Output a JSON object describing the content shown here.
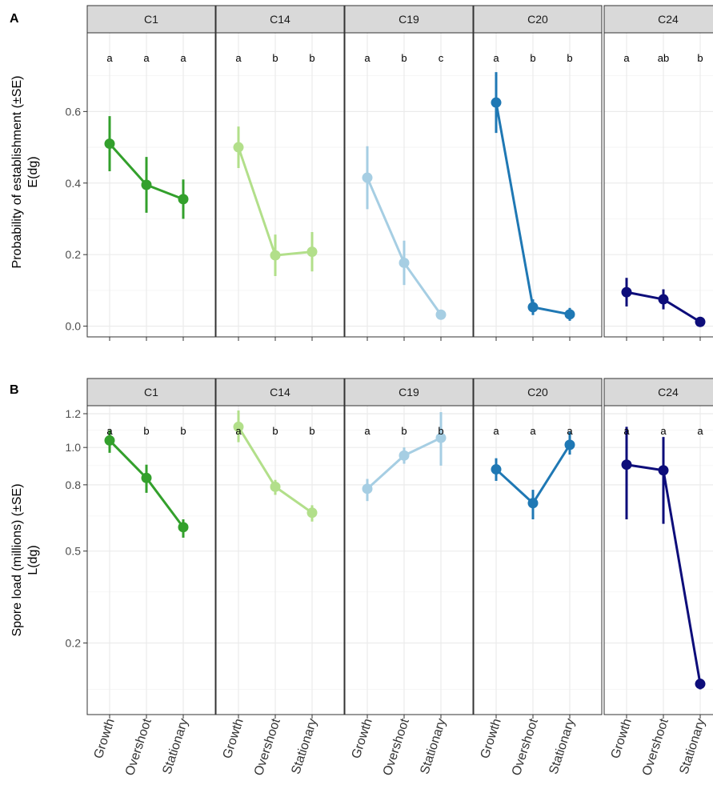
{
  "colors": {
    "C1": "#33a02c",
    "C14": "#b2df8a",
    "C19": "#a6cee3",
    "C20": "#1f78b4",
    "C24": "#0d0d7a"
  },
  "chart_data": [
    {
      "panel": "A",
      "type": "line",
      "ylabel_line1": "Probability of establishment (±SE)",
      "ylabel_line2": "E(dg)",
      "ylim": [
        -0.03,
        0.82
      ],
      "yticks": [
        0.0,
        0.2,
        0.4,
        0.6
      ],
      "ytick_labels": [
        "0.0",
        "0.2",
        "0.4",
        "0.6"
      ],
      "categories": [
        "Growth",
        "Overshoot",
        "Stationary"
      ],
      "grid": true,
      "facets": [
        {
          "name": "C1",
          "values": [
            0.51,
            0.395,
            0.355
          ],
          "se": [
            0.077,
            0.078,
            0.055
          ],
          "letters": [
            "a",
            "a",
            "a"
          ]
        },
        {
          "name": "C14",
          "values": [
            0.5,
            0.198,
            0.208
          ],
          "se": [
            0.058,
            0.058,
            0.055
          ],
          "letters": [
            "a",
            "b",
            "b"
          ]
        },
        {
          "name": "C19",
          "values": [
            0.415,
            0.177,
            0.032
          ],
          "se": [
            0.088,
            0.062,
            0.012
          ],
          "letters": [
            "a",
            "b",
            "c"
          ]
        },
        {
          "name": "C20",
          "values": [
            0.625,
            0.053,
            0.033
          ],
          "se": [
            0.085,
            0.022,
            0.018
          ],
          "letters": [
            "a",
            "b",
            "b"
          ]
        },
        {
          "name": "C24",
          "values": [
            0.095,
            0.075,
            0.012
          ],
          "se": [
            0.04,
            0.028,
            0.007
          ],
          "letters": [
            "a",
            "ab",
            "b"
          ]
        }
      ]
    },
    {
      "panel": "B",
      "type": "line",
      "ylabel_line1": "Spore load (millions) (±SE)",
      "ylabel_line2": "L(dg)",
      "y_transform": "sqrt",
      "ylim": [
        0.06,
        1.25
      ],
      "yticks": [
        0.2,
        0.5,
        0.8,
        1.0,
        1.2
      ],
      "ytick_labels": [
        "0.2",
        "0.5",
        "0.8",
        "1.0",
        "1.2"
      ],
      "categories": [
        "Growth",
        "Overshoot",
        "Stationary"
      ],
      "grid": true,
      "facets": [
        {
          "name": "C1",
          "values": [
            1.04,
            0.835,
            0.6
          ],
          "errlow": [
            0.97,
            0.76,
            0.555
          ],
          "errhigh": [
            1.1,
            0.905,
            0.635
          ],
          "letters": [
            "a",
            "b",
            "b"
          ]
        },
        {
          "name": "C14",
          "values": [
            1.12,
            0.79,
            0.665
          ],
          "errlow": [
            1.03,
            0.75,
            0.625
          ],
          "errhigh": [
            1.22,
            0.825,
            0.7
          ],
          "letters": [
            "a",
            "b",
            "b"
          ]
        },
        {
          "name": "C19",
          "values": [
            0.78,
            0.955,
            1.055
          ],
          "errlow": [
            0.72,
            0.91,
            0.9
          ],
          "errhigh": [
            0.83,
            1.0,
            1.21
          ],
          "letters": [
            "a",
            "b",
            "b"
          ]
        },
        {
          "name": "C20",
          "values": [
            0.88,
            0.71,
            1.015
          ],
          "errlow": [
            0.82,
            0.635,
            0.96
          ],
          "errhigh": [
            0.94,
            0.775,
            1.09
          ],
          "letters": [
            "a",
            "a",
            "a"
          ]
        },
        {
          "name": "C24",
          "values": [
            0.905,
            0.875,
            0.11
          ],
          "errlow": [
            0.635,
            0.615,
            0.1
          ],
          "errhigh": [
            1.12,
            1.06,
            0.12
          ],
          "letters": [
            "a",
            "a",
            "a"
          ]
        }
      ]
    }
  ]
}
